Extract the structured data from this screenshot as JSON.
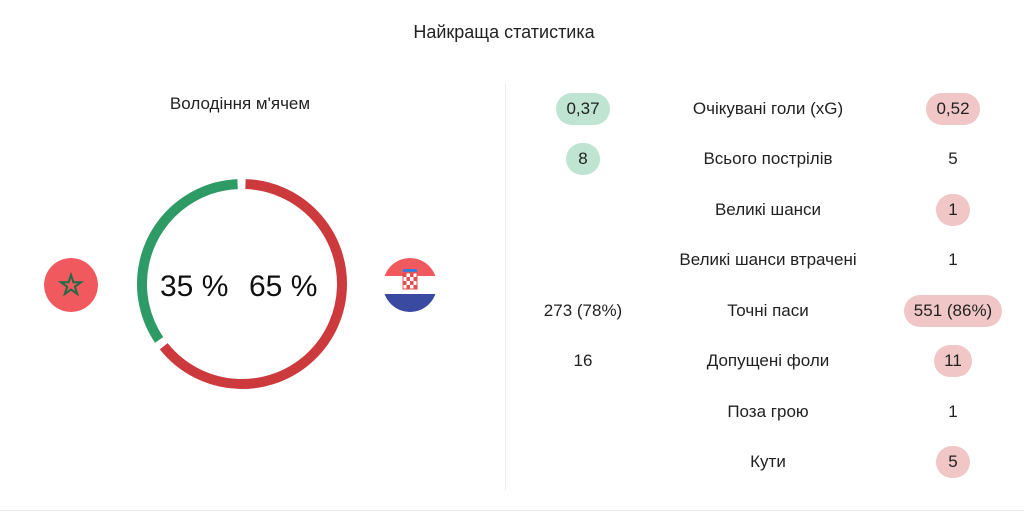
{
  "title": "Найкраща статистика",
  "possession": {
    "label": "Володіння м'ячем",
    "home_value": 35,
    "away_value": 65,
    "home_text": "35 %",
    "away_text": "65 %",
    "home_color": "#2e9a66",
    "away_color": "#cc3a3d"
  },
  "teams": {
    "home_flag": "morocco-flag",
    "away_flag": "croatia-flag"
  },
  "colors": {
    "home_highlight": "#bfe4d2",
    "away_highlight": "#f0c6c6"
  },
  "stats": [
    {
      "label": "Очікувані голи (xG)",
      "home": "0,37",
      "away": "0,52",
      "home_highlight": true,
      "away_highlight": true
    },
    {
      "label": "Всього пострілів",
      "home": "8",
      "away": "5",
      "home_highlight": true,
      "away_highlight": false
    },
    {
      "label": "Великі шанси",
      "home": "",
      "away": "1",
      "home_highlight": false,
      "away_highlight": true
    },
    {
      "label": "Великі шанси втрачені",
      "home": "",
      "away": "1",
      "home_highlight": false,
      "away_highlight": false
    },
    {
      "label": "Точні паси",
      "home": "273 (78%)",
      "away": "551 (86%)",
      "home_highlight": false,
      "away_highlight": true
    },
    {
      "label": "Допущені фоли",
      "home": "16",
      "away": "11",
      "home_highlight": false,
      "away_highlight": true
    },
    {
      "label": "Поза грою",
      "home": "",
      "away": "1",
      "home_highlight": false,
      "away_highlight": false
    },
    {
      "label": "Кути",
      "home": "",
      "away": "5",
      "home_highlight": false,
      "away_highlight": true
    }
  ]
}
